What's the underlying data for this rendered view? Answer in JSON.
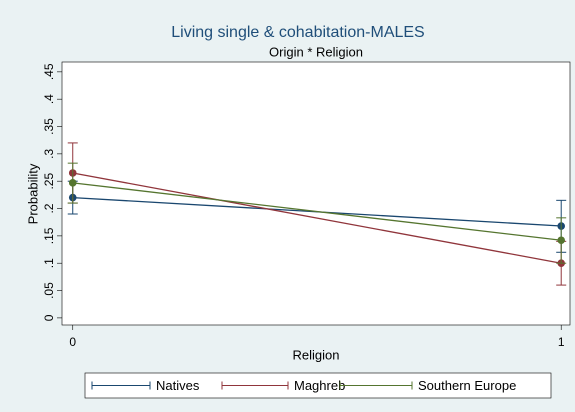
{
  "chart_data": {
    "type": "errorline",
    "title": "Living single & cohabitation-MALES",
    "subtitle": "Origin * Religion",
    "x_label": "Religion",
    "y_label": "Probability",
    "x": [
      0,
      1
    ],
    "xlim": [
      -0.022,
      1.018
    ],
    "xticks": [
      0,
      1
    ],
    "ylim": [
      -0.013,
      0.468
    ],
    "yticks": [
      0,
      {
        "value": 0.05,
        "label": ".05"
      },
      {
        "value": 0.1,
        "label": ".1"
      },
      {
        "value": 0.15,
        "label": ".15"
      },
      {
        "value": 0.2,
        "label": ".2"
      },
      {
        "value": 0.25,
        "label": ".25"
      },
      {
        "value": 0.3,
        "label": ".3"
      },
      {
        "value": 0.35,
        "label": ".35"
      },
      {
        "value": 0.4,
        "label": ".4"
      },
      {
        "value": 0.45,
        "label": ".45"
      }
    ],
    "series": [
      {
        "name": "Natives",
        "color": "#1a476f",
        "values": [
          0.22,
          0.168
        ],
        "lower": [
          0.19,
          0.12
        ],
        "upper": [
          0.25,
          0.215
        ]
      },
      {
        "name": "Maghreb",
        "color": "#90353b",
        "values": [
          0.265,
          0.1
        ],
        "lower": [
          0.21,
          0.06
        ],
        "upper": [
          0.32,
          0.14
        ]
      },
      {
        "name": "Southern Europe",
        "color": "#55752f",
        "values": [
          0.247,
          0.142
        ],
        "lower": [
          0.21,
          0.1
        ],
        "upper": [
          0.283,
          0.183
        ]
      }
    ]
  }
}
